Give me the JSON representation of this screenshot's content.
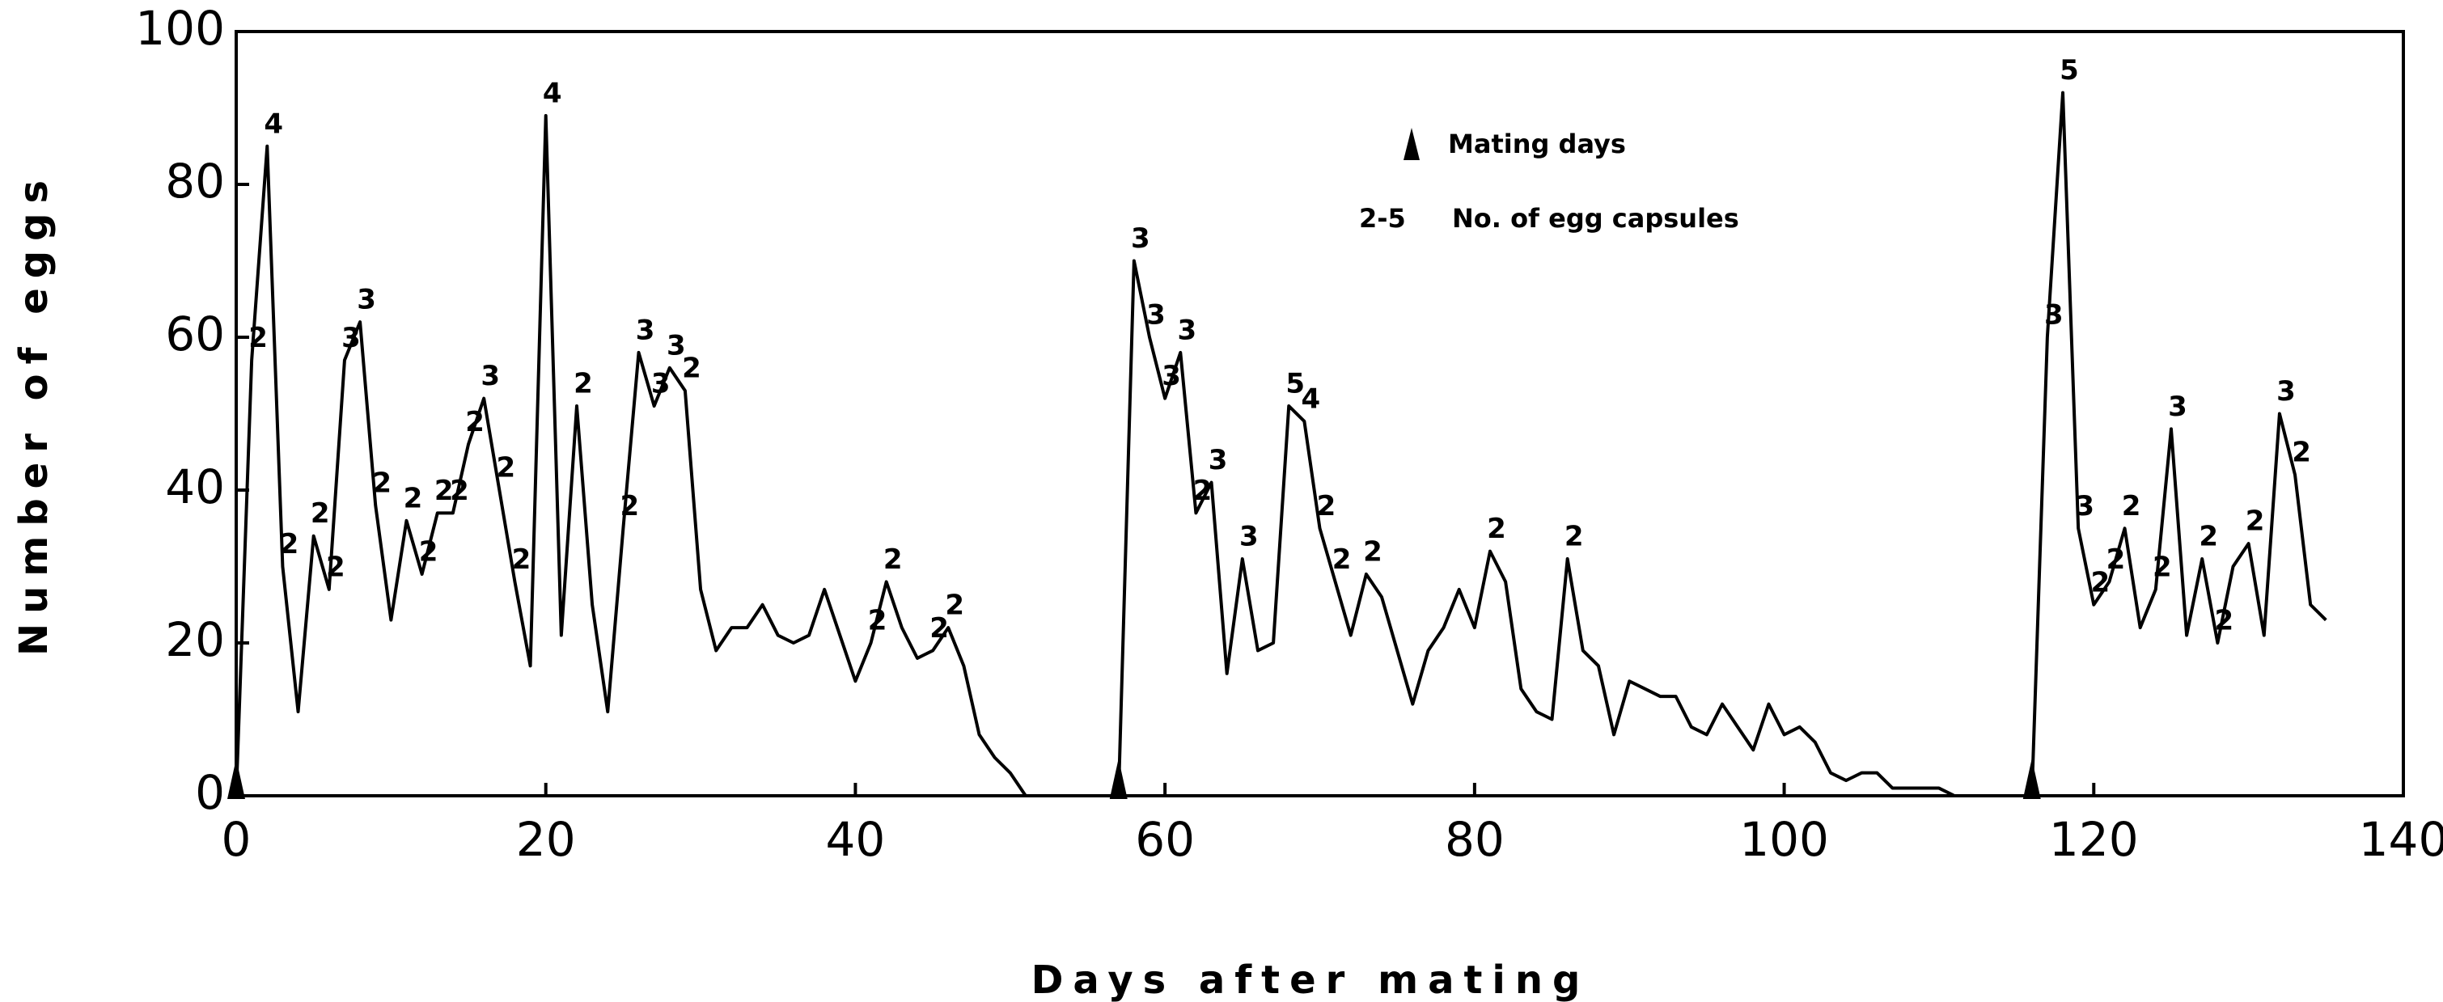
{
  "chart_data": {
    "type": "line",
    "xlabel": "Days after mating",
    "ylabel": "Number of eggs",
    "xlim": [
      0,
      140
    ],
    "xticks": [
      0,
      20,
      40,
      60,
      80,
      100,
      120,
      140
    ],
    "ylim": [
      0,
      100
    ],
    "yticks": [
      0,
      20,
      40,
      60,
      80,
      100
    ],
    "legend": {
      "marker_label": "Mating days",
      "range_label": "2-5",
      "capsule_label": "No. of egg capsules"
    },
    "mating_days": [
      0,
      57,
      116
    ],
    "color": "#000000",
    "x": [
      0,
      1,
      2,
      3,
      4,
      5,
      6,
      7,
      8,
      9,
      10,
      11,
      12,
      13,
      14,
      15,
      16,
      17,
      18,
      19,
      20,
      21,
      22,
      23,
      24,
      25,
      26,
      27,
      28,
      29,
      30,
      31,
      32,
      33,
      34,
      35,
      36,
      37,
      38,
      39,
      40,
      41,
      42,
      43,
      44,
      45,
      46,
      47,
      48,
      49,
      50,
      51,
      57,
      58,
      59,
      60,
      61,
      62,
      63,
      64,
      65,
      66,
      67,
      68,
      69,
      70,
      71,
      72,
      73,
      74,
      75,
      76,
      77,
      78,
      79,
      80,
      81,
      82,
      83,
      84,
      85,
      86,
      87,
      88,
      89,
      90,
      91,
      92,
      93,
      94,
      95,
      96,
      97,
      98,
      99,
      100,
      101,
      102,
      103,
      104,
      105,
      106,
      107,
      108,
      109,
      110,
      111,
      116,
      117,
      118,
      119,
      120,
      121,
      122,
      123,
      124,
      125,
      126,
      127,
      128,
      129,
      130,
      131,
      132,
      133,
      134,
      135
    ],
    "values": [
      0,
      57,
      85,
      30,
      11,
      34,
      27,
      57,
      62,
      38,
      23,
      36,
      29,
      37,
      37,
      46,
      52,
      40,
      28,
      17,
      89,
      21,
      51,
      25,
      11,
      35,
      58,
      51,
      56,
      53,
      27,
      19,
      22,
      22,
      25,
      21,
      20,
      21,
      27,
      21,
      15,
      20,
      28,
      22,
      18,
      19,
      22,
      17,
      8,
      5,
      3,
      0,
      0,
      70,
      60,
      52,
      58,
      37,
      41,
      16,
      31,
      19,
      20,
      51,
      49,
      35,
      28,
      21,
      29,
      26,
      19,
      12,
      19,
      22,
      27,
      22,
      32,
      28,
      14,
      11,
      10,
      31,
      19,
      17,
      8,
      15,
      14,
      13,
      13,
      9,
      8,
      12,
      9,
      6,
      12,
      8,
      9,
      7,
      3,
      2,
      3,
      3,
      1,
      1,
      1,
      1,
      0,
      0,
      60,
      92,
      35,
      25,
      28,
      35,
      22,
      27,
      48,
      21,
      31,
      20,
      30,
      33,
      21,
      50,
      42,
      25,
      23
    ],
    "capsules": [
      null,
      2,
      4,
      2,
      null,
      2,
      2,
      3,
      3,
      2,
      null,
      2,
      2,
      2,
      2,
      2,
      3,
      2,
      2,
      null,
      4,
      null,
      2,
      null,
      null,
      2,
      3,
      3,
      3,
      2,
      null,
      null,
      null,
      null,
      null,
      null,
      null,
      null,
      null,
      null,
      null,
      2,
      2,
      null,
      null,
      2,
      2,
      null,
      null,
      null,
      null,
      null,
      null,
      3,
      3,
      3,
      3,
      2,
      3,
      null,
      3,
      null,
      null,
      5,
      4,
      2,
      2,
      null,
      2,
      null,
      null,
      null,
      null,
      null,
      null,
      null,
      2,
      null,
      null,
      null,
      null,
      2,
      null,
      null,
      null,
      null,
      null,
      null,
      null,
      null,
      null,
      null,
      null,
      null,
      null,
      null,
      null,
      null,
      null,
      null,
      null,
      null,
      null,
      null,
      null,
      null,
      null,
      null,
      3,
      5,
      3,
      2,
      2,
      2,
      null,
      2,
      3,
      null,
      2,
      2,
      null,
      2,
      null,
      3,
      2,
      null,
      null
    ]
  }
}
